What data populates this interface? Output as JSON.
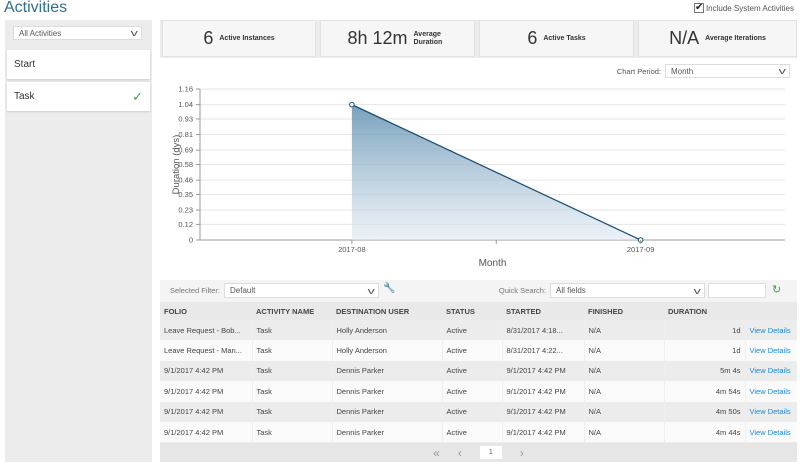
{
  "header": {
    "title": "Activities",
    "include_system": "Include System Activities",
    "include_checked": true
  },
  "sidebar": {
    "filter": "All Activities",
    "items": [
      {
        "label": "Start",
        "checked": false
      },
      {
        "label": "Task",
        "checked": true
      }
    ]
  },
  "stats": [
    {
      "value": "6",
      "label": "Active Instances"
    },
    {
      "value": "8h 12m",
      "label": "Average Duration"
    },
    {
      "value": "6",
      "label": "Active Tasks"
    },
    {
      "value": "N/A",
      "label": "Average Iterations"
    }
  ],
  "chart_controls": {
    "period_label": "Chart Period:",
    "period": "Month"
  },
  "chart_data": {
    "type": "area",
    "categories": [
      "2017-08",
      "2017-09"
    ],
    "values": [
      1.04,
      0
    ],
    "xlabel": "Month",
    "ylabel": "Duration (dys)",
    "ylim": [
      0,
      1.16
    ],
    "yticks": [
      "0",
      "0.12",
      "0.23",
      "0.35",
      "0.46",
      "0.58",
      "0.69",
      "0.81",
      "0.93",
      "1.04",
      "1.16"
    ],
    "grid": true
  },
  "filter": {
    "label": "Selected Filter:",
    "value": "Default",
    "search_label": "Quick Search:",
    "search_scope": "All fields",
    "search_value": ""
  },
  "table": {
    "columns": [
      "FOLIO",
      "ACTIVITY NAME",
      "DESTINATION USER",
      "STATUS",
      "STARTED",
      "FINISHED",
      "DURATION",
      ""
    ],
    "rows": [
      [
        "Leave Request - Bob...",
        "Task",
        "Holly Anderson",
        "Active",
        "8/31/2017 4:18...",
        "N/A",
        "1d",
        "View Details"
      ],
      [
        "Leave Request - Man...",
        "Task",
        "Holly Anderson",
        "Active",
        "8/31/2017 4:22...",
        "N/A",
        "1d",
        "View Details"
      ],
      [
        "9/1/2017 4:42 PM",
        "Task",
        "Dennis Parker",
        "Active",
        "9/1/2017 4:42 PM",
        "N/A",
        "5m 4s",
        "View Details"
      ],
      [
        "9/1/2017 4:42 PM",
        "Task",
        "Dennis Parker",
        "Active",
        "9/1/2017 4:42 PM",
        "N/A",
        "4m 54s",
        "View Details"
      ],
      [
        "9/1/2017 4:42 PM",
        "Task",
        "Dennis Parker",
        "Active",
        "9/1/2017 4:42 PM",
        "N/A",
        "4m 50s",
        "View Details"
      ],
      [
        "9/1/2017 4:42 PM",
        "Task",
        "Dennis Parker",
        "Active",
        "9/1/2017 4:42 PM",
        "N/A",
        "4m 44s",
        "View Details"
      ]
    ]
  },
  "pager": {
    "page": "1"
  },
  "colors": {
    "accent": "#2f6f8f",
    "line": "#1d4f73",
    "link": "#1a8ad4",
    "check": "#3aa83a"
  }
}
